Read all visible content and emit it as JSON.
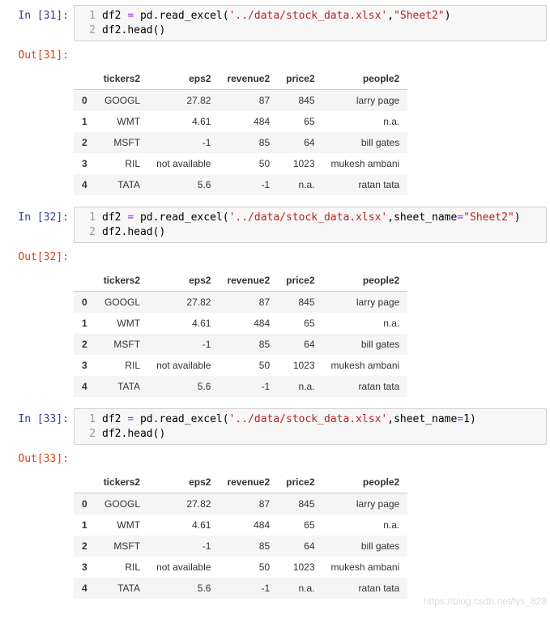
{
  "cells": [
    {
      "in_prompt": "In  [31]:",
      "out_prompt": "Out[31]:",
      "code_lines": [
        {
          "n": "1",
          "tokens": [
            {
              "t": "df2 ",
              "c": "c-var"
            },
            {
              "t": "=",
              "c": "c-op"
            },
            {
              "t": " pd",
              "c": "c-var"
            },
            {
              "t": ".",
              "c": "c-punc"
            },
            {
              "t": "read_excel",
              "c": "c-fn"
            },
            {
              "t": "(",
              "c": "c-punc"
            },
            {
              "t": "'../data/stock_data.xlsx'",
              "c": "c-str"
            },
            {
              "t": ",",
              "c": "c-punc"
            },
            {
              "t": "\"Sheet2\"",
              "c": "c-str"
            },
            {
              "t": ")",
              "c": "c-punc"
            }
          ]
        },
        {
          "n": "2",
          "tokens": [
            {
              "t": "df2",
              "c": "c-var"
            },
            {
              "t": ".",
              "c": "c-punc"
            },
            {
              "t": "head",
              "c": "c-fn"
            },
            {
              "t": "()",
              "c": "c-punc"
            }
          ]
        }
      ]
    },
    {
      "in_prompt": "In  [32]:",
      "out_prompt": "Out[32]:",
      "code_lines": [
        {
          "n": "1",
          "tokens": [
            {
              "t": "df2 ",
              "c": "c-var"
            },
            {
              "t": "=",
              "c": "c-op"
            },
            {
              "t": " pd",
              "c": "c-var"
            },
            {
              "t": ".",
              "c": "c-punc"
            },
            {
              "t": "read_excel",
              "c": "c-fn"
            },
            {
              "t": "(",
              "c": "c-punc"
            },
            {
              "t": "'../data/stock_data.xlsx'",
              "c": "c-str"
            },
            {
              "t": ",",
              "c": "c-punc"
            },
            {
              "t": "sheet_name",
              "c": "c-var"
            },
            {
              "t": "=",
              "c": "c-op"
            },
            {
              "t": "\"Sheet2\"",
              "c": "c-str"
            },
            {
              "t": ")",
              "c": "c-punc"
            }
          ]
        },
        {
          "n": "2",
          "tokens": [
            {
              "t": "df2",
              "c": "c-var"
            },
            {
              "t": ".",
              "c": "c-punc"
            },
            {
              "t": "head",
              "c": "c-fn"
            },
            {
              "t": "()",
              "c": "c-punc"
            }
          ]
        }
      ]
    },
    {
      "in_prompt": "In  [33]:",
      "out_prompt": "Out[33]:",
      "code_lines": [
        {
          "n": "1",
          "tokens": [
            {
              "t": "df2 ",
              "c": "c-var"
            },
            {
              "t": "=",
              "c": "c-op"
            },
            {
              "t": " pd",
              "c": "c-var"
            },
            {
              "t": ".",
              "c": "c-punc"
            },
            {
              "t": "read_excel",
              "c": "c-fn"
            },
            {
              "t": "(",
              "c": "c-punc"
            },
            {
              "t": "'../data/stock_data.xlsx'",
              "c": "c-str"
            },
            {
              "t": ",",
              "c": "c-punc"
            },
            {
              "t": "sheet_name",
              "c": "c-var"
            },
            {
              "t": "=",
              "c": "c-op"
            },
            {
              "t": "1",
              "c": "c-var"
            },
            {
              "t": ")",
              "c": "c-punc"
            }
          ]
        },
        {
          "n": "2",
          "tokens": [
            {
              "t": "df2",
              "c": "c-var"
            },
            {
              "t": ".",
              "c": "c-punc"
            },
            {
              "t": "head",
              "c": "c-fn"
            },
            {
              "t": "()",
              "c": "c-punc"
            }
          ]
        }
      ]
    }
  ],
  "table": {
    "columns": [
      "",
      "tickers2",
      "eps2",
      "revenue2",
      "price2",
      "people2"
    ],
    "rows": [
      [
        "0",
        "GOOGL",
        "27.82",
        "87",
        "845",
        "larry page"
      ],
      [
        "1",
        "WMT",
        "4.61",
        "484",
        "65",
        "n.a."
      ],
      [
        "2",
        "MSFT",
        "-1",
        "85",
        "64",
        "bill gates"
      ],
      [
        "3",
        "RIL",
        "not available",
        "50",
        "1023",
        "mukesh ambani"
      ],
      [
        "4",
        "TATA",
        "5.6",
        "-1",
        "n.a.",
        "ratan tata"
      ]
    ]
  },
  "watermark": "https://blog.csdn.net/lys_828"
}
